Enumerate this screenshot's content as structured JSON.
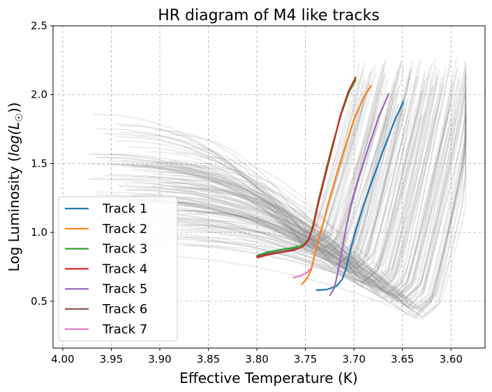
{
  "chart_data": {
    "type": "line",
    "title": "HR diagram of M4 like tracks",
    "xlabel": "Effective Temperature (K)",
    "ylabel": "Log Luminosity (log(L☉))",
    "xlim": [
      4.01,
      3.565
    ],
    "ylim": [
      0.16,
      2.5
    ],
    "x_inverted": true,
    "xticks": [
      4.0,
      3.95,
      3.9,
      3.85,
      3.8,
      3.75,
      3.7,
      3.65,
      3.6
    ],
    "xtick_labels": [
      "4.00",
      "3.95",
      "3.90",
      "3.85",
      "3.80",
      "3.75",
      "3.70",
      "3.65",
      "3.60"
    ],
    "yticks": [
      0.5,
      1.0,
      1.5,
      2.0,
      2.5
    ],
    "ytick_labels": [
      "0.5",
      "1.0",
      "1.5",
      "2.0",
      "2.5"
    ],
    "grid": true,
    "legend_position": "lower-left",
    "background_tracks_color": "#808080",
    "series": [
      {
        "name": "Track 1",
        "color": "#1f77b4",
        "x": [
          3.739,
          3.728,
          3.718,
          3.712,
          3.708,
          3.704,
          3.698,
          3.69,
          3.68,
          3.668,
          3.657,
          3.649
        ],
        "y": [
          0.58,
          0.585,
          0.61,
          0.66,
          0.74,
          0.86,
          1.02,
          1.2,
          1.4,
          1.63,
          1.83,
          1.95
        ]
      },
      {
        "name": "Track 2",
        "color": "#ff7f0e",
        "x": [
          3.754,
          3.748,
          3.744,
          3.741,
          3.737,
          3.732,
          3.726,
          3.718,
          3.709,
          3.7,
          3.69,
          3.682
        ],
        "y": [
          0.62,
          0.67,
          0.73,
          0.82,
          0.93,
          1.06,
          1.22,
          1.42,
          1.62,
          1.82,
          1.98,
          2.07
        ]
      },
      {
        "name": "Track 3",
        "color": "#2ca02c",
        "x": [
          3.8,
          3.79,
          3.775,
          3.762,
          3.752,
          3.746,
          3.742,
          3.737,
          3.73,
          3.722,
          3.713,
          3.705,
          3.698
        ],
        "y": [
          0.83,
          0.855,
          0.875,
          0.89,
          0.91,
          0.96,
          1.06,
          1.22,
          1.42,
          1.64,
          1.86,
          2.02,
          2.11
        ]
      },
      {
        "name": "Track 4",
        "color": "#d62728",
        "x": [
          3.8,
          3.79,
          3.775,
          3.762,
          3.753,
          3.747,
          3.742,
          3.737,
          3.73,
          3.722,
          3.714,
          3.706,
          3.698
        ],
        "y": [
          0.815,
          0.835,
          0.855,
          0.87,
          0.895,
          0.94,
          1.04,
          1.2,
          1.4,
          1.62,
          1.85,
          2.02,
          2.13
        ]
      },
      {
        "name": "Track 5",
        "color": "#9467bd",
        "x": [
          3.725,
          3.72,
          3.717,
          3.713,
          3.709,
          3.703,
          3.695,
          3.685,
          3.675,
          3.664
        ],
        "y": [
          0.54,
          0.6,
          0.7,
          0.84,
          1.0,
          1.2,
          1.4,
          1.62,
          1.83,
          2.01
        ]
      },
      {
        "name": "Track 6",
        "color": "#8c564b",
        "x": [
          3.801,
          3.789,
          3.776,
          3.764,
          3.755
        ],
        "y": [
          0.825,
          0.845,
          0.86,
          0.875,
          0.89
        ]
      },
      {
        "name": "Track 7",
        "color": "#e377c2",
        "x": [
          3.763,
          3.755,
          3.748,
          3.743
        ],
        "y": [
          0.67,
          0.685,
          0.71,
          0.75
        ]
      }
    ]
  }
}
